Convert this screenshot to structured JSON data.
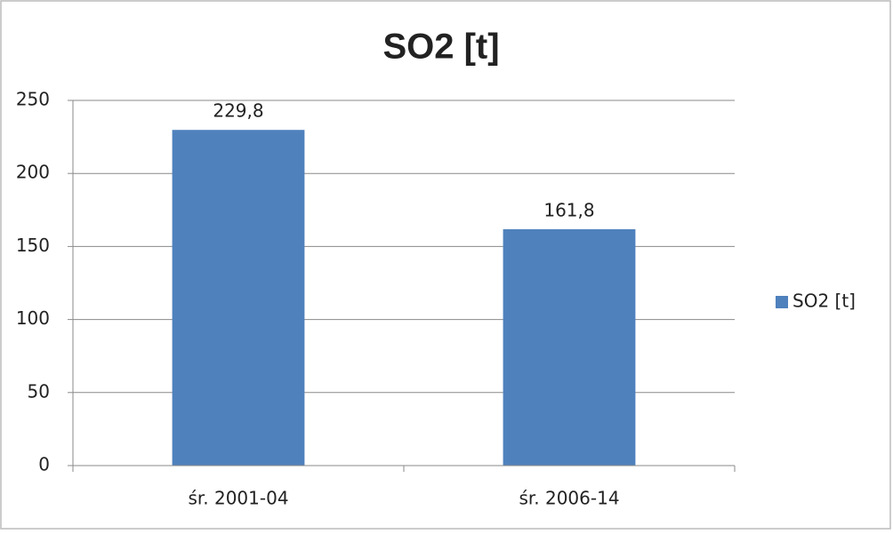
{
  "chart_data": {
    "type": "bar",
    "title": "SO2 [t]",
    "categories": [
      "śr. 2001-04",
      "śr. 2006-14"
    ],
    "series": [
      {
        "name": "SO2 [t]",
        "color": "#4f81bd",
        "values": [
          229.8,
          161.8
        ],
        "value_labels": [
          "229,8",
          "161,8"
        ]
      }
    ],
    "ylim": [
      0,
      250
    ],
    "yticks": [
      0,
      50,
      100,
      150,
      200,
      250
    ],
    "grid": true,
    "legend": "right"
  }
}
